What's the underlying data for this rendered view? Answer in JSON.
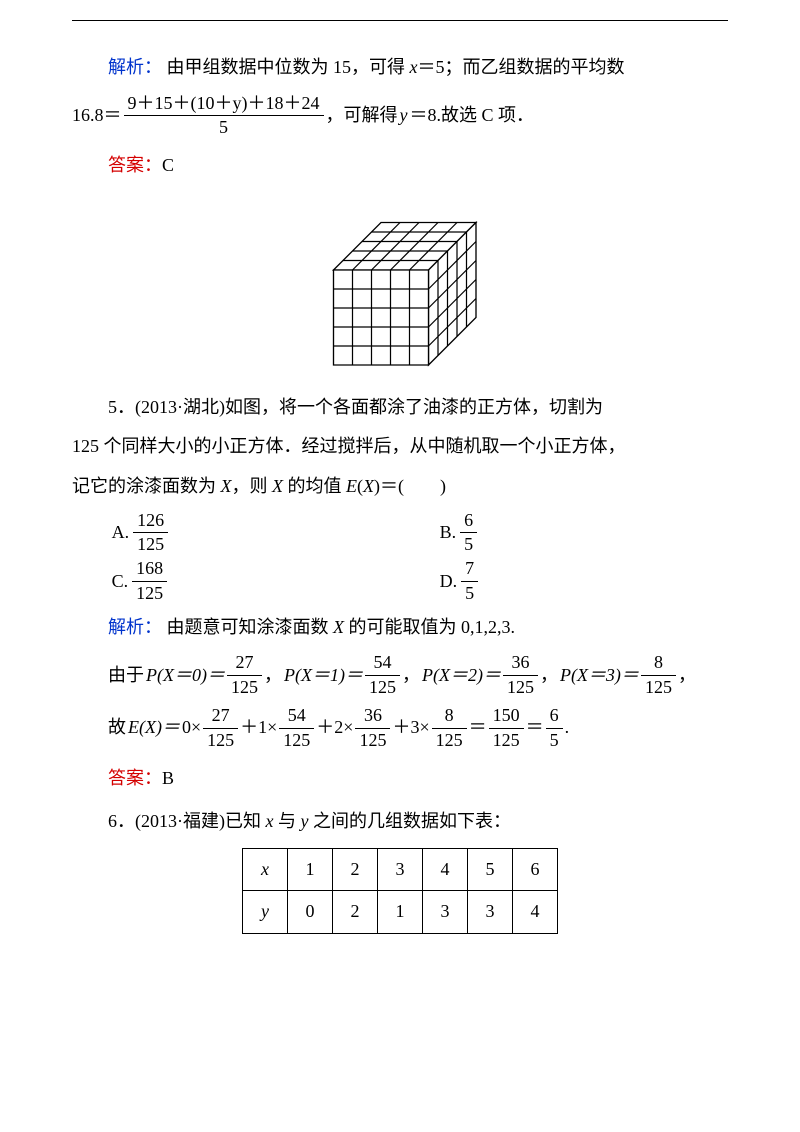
{
  "sol1": {
    "label": "解析：",
    "line1_a": "由甲组数据中位数为 15，可得 ",
    "line1_b": "＝5；而乙组数据的平均数",
    "eq_lhs": "16.8＝",
    "frac_num": "9＋15＋(10＋y)＋18＋24",
    "frac_den": "5",
    "eq_rhs_a": "，可解得 ",
    "eq_rhs_b": "＝8.故选 C 项．"
  },
  "ans1": {
    "label": "答案：",
    "value": "C"
  },
  "cube": {
    "n": 5,
    "stroke": "#000000",
    "fill": "#ffffff",
    "width": 190,
    "height": 190
  },
  "q5": {
    "prefix": "5．(2013·湖北)如图，将一个各面都涂了油漆的正方体，切割为",
    "line2": "125 个同样大小的小正方体．经过搅拌后，从中随机取一个小正方体，",
    "line3_a": "记它的涂漆面数为 ",
    "line3_b": "，则 ",
    "line3_c": " 的均值 ",
    "line3_d": "＝(　　)",
    "choices": {
      "A": {
        "num": "126",
        "den": "125"
      },
      "B": {
        "num": "6",
        "den": "5"
      },
      "C": {
        "num": "168",
        "den": "125"
      },
      "D": {
        "num": "7",
        "den": "5"
      }
    }
  },
  "sol2": {
    "label": "解析：",
    "line1_a": "由题意可知涂漆面数 ",
    "line1_b": " 的可能取值为 0,1,2,3.",
    "line2_a": "由于 ",
    "p0": {
      "lhs": "P(X＝0)＝",
      "num": "27",
      "den": "125"
    },
    "p1": {
      "lhs": "P(X＝1)＝",
      "num": "54",
      "den": "125"
    },
    "p2": {
      "lhs": "P(X＝2)＝",
      "num": "36",
      "den": "125"
    },
    "p3": {
      "lhs": "P(X＝3)＝",
      "num": "8",
      "den": "125"
    },
    "line3": {
      "prefix": "故 ",
      "EX": "E(X)＝",
      "t0": {
        "num": "27",
        "den": "125"
      },
      "t1": {
        "num": "54",
        "den": "125"
      },
      "t2": {
        "num": "36",
        "den": "125"
      },
      "t3": {
        "num": "8",
        "den": "125"
      },
      "tot": {
        "num": "150",
        "den": "125"
      },
      "res": {
        "num": "6",
        "den": "5"
      }
    }
  },
  "ans2": {
    "label": "答案：",
    "value": "B"
  },
  "q6": {
    "prefix": "6．(2013·福建)已知 ",
    "mid": " 与 ",
    "suffix": " 之间的几组数据如下表："
  },
  "table": {
    "xs": [
      "1",
      "2",
      "3",
      "4",
      "5",
      "6"
    ],
    "ys": [
      "0",
      "2",
      "1",
      "3",
      "3",
      "4"
    ]
  }
}
